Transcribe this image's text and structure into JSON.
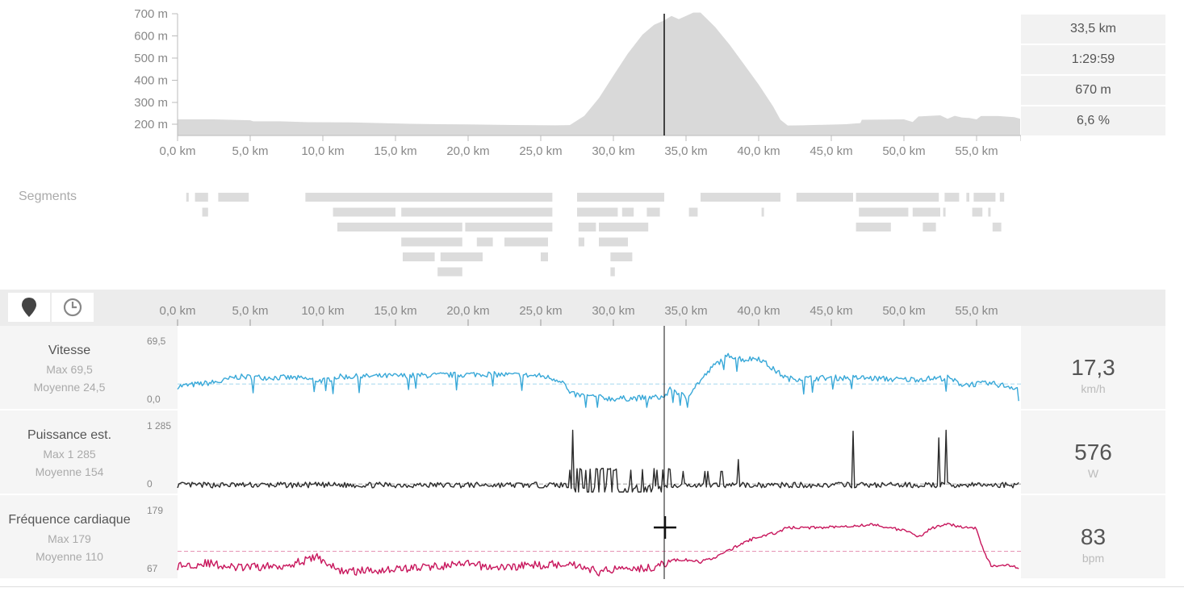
{
  "elevation": {
    "y_ticks": [
      "700 m",
      "600 m",
      "500 m",
      "400 m",
      "300 m",
      "200 m"
    ],
    "x_ticks": [
      "0,0 km",
      "5,0 km",
      "10,0 km",
      "15,0 km",
      "20,0 km",
      "25,0 km",
      "30,0 km",
      "35,0 km",
      "40,0 km",
      "45,0 km",
      "50,0 km",
      "55,0 km"
    ],
    "cursor_km": 33.5,
    "stats": [
      "33,5 km",
      "1:29:59",
      "670 m",
      "6,6 %"
    ],
    "fill_color": "#d9d9d9"
  },
  "segments": {
    "title": "Segments",
    "rows_km": [
      [
        [
          0.6,
          0.7
        ],
        [
          1.2,
          2.1
        ],
        [
          2.8,
          4.9
        ],
        [
          8.8,
          25.8
        ],
        [
          27.5,
          33.5
        ],
        [
          36.0,
          41.5
        ],
        [
          42.6,
          46.5
        ],
        [
          46.7,
          52.4
        ],
        [
          52.8,
          53.8
        ],
        [
          54.3,
          54.5
        ],
        [
          54.8,
          56.3
        ],
        [
          56.6,
          56.9
        ]
      ],
      [
        [
          1.7,
          2.1
        ],
        [
          10.7,
          15.0
        ],
        [
          15.4,
          25.8
        ],
        [
          27.5,
          30.3
        ],
        [
          30.6,
          31.4
        ],
        [
          32.3,
          33.2
        ],
        [
          35.2,
          35.8
        ],
        [
          40.2,
          40.3
        ],
        [
          46.9,
          50.3
        ],
        [
          50.6,
          52.5
        ],
        [
          52.7,
          52.8
        ],
        [
          54.7,
          55.4
        ],
        [
          55.8,
          55.9
        ]
      ],
      [
        [
          11.0,
          19.6
        ],
        [
          19.8,
          25.8
        ],
        [
          27.6,
          28.8
        ],
        [
          29.0,
          32.4
        ],
        [
          46.7,
          49.1
        ],
        [
          51.3,
          52.2
        ],
        [
          56.1,
          56.7
        ]
      ],
      [
        [
          15.4,
          19.6
        ],
        [
          20.6,
          21.7
        ],
        [
          22.5,
          25.5
        ],
        [
          27.6,
          28.0
        ],
        [
          29.0,
          31.0
        ]
      ],
      [
        [
          15.5,
          17.7
        ],
        [
          18.1,
          21.0
        ],
        [
          25.0,
          25.5
        ],
        [
          29.8,
          31.3
        ]
      ],
      [
        [
          17.9,
          19.6
        ],
        [
          29.8,
          30.1
        ]
      ]
    ]
  },
  "toolbar": {
    "buttons": [
      {
        "name": "distance-mode-button",
        "icon": "map-pin-icon"
      },
      {
        "name": "time-mode-button",
        "icon": "clock-icon"
      }
    ],
    "x_ticks": [
      "0,0 km",
      "5,0 km",
      "10,0 km",
      "15,0 km",
      "20,0 km",
      "25,0 km",
      "30,0 km",
      "35,0 km",
      "40,0 km",
      "45,0 km",
      "50,0 km",
      "55,0 km"
    ]
  },
  "metrics": [
    {
      "key": "speed",
      "label": "Vitesse",
      "max_text": "Max 69,5",
      "avg_text": "Moyenne 24,5",
      "axis_top": "69,5",
      "axis_bottom": "0,0",
      "value": "17,3",
      "unit": "km/h",
      "color": "#38a8d8",
      "max": 69.5,
      "min": 0,
      "avg": 24.5
    },
    {
      "key": "power",
      "label": "Puissance est.",
      "max_text": "Max 1 285",
      "avg_text": "Moyenne 154",
      "axis_top": "1 285",
      "axis_bottom": "0",
      "value": "576",
      "unit": "W",
      "color": "#2b2b2b",
      "max": 1285,
      "min": 0,
      "avg": 154
    },
    {
      "key": "heart_rate",
      "label": "Fréquence cardiaque",
      "max_text": "Max 179",
      "avg_text": "Moyenne 110",
      "axis_top": "179",
      "axis_bottom": "67",
      "value": "83",
      "unit": "bpm",
      "color": "#c8175d",
      "max": 179,
      "min": 67,
      "avg": 110
    }
  ]
}
